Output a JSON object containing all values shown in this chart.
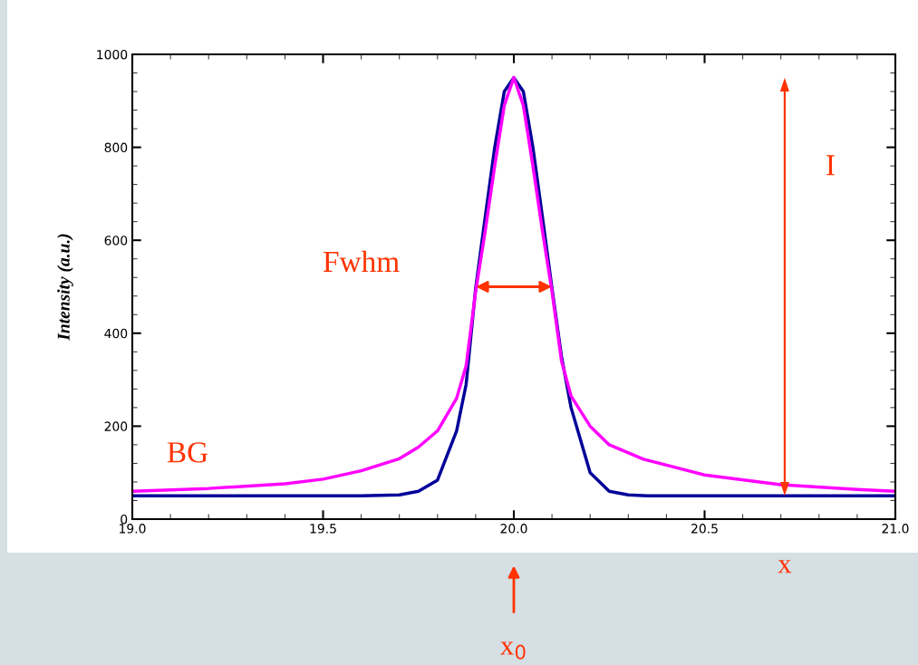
{
  "chart_data": {
    "type": "line",
    "ylabel": "Intensity (a.u.)",
    "series": [
      {
        "color": "#000099",
        "x": [
          19.0,
          19.2,
          19.4,
          19.6,
          19.7,
          19.75,
          19.8,
          19.85,
          19.875,
          19.9,
          19.925,
          19.95,
          19.975,
          20.0,
          20.025,
          20.05,
          20.075,
          20.1,
          20.125,
          20.15,
          20.2,
          20.25,
          20.3,
          20.35,
          20.5,
          20.7,
          21.0
        ],
        "values": [
          50,
          50,
          50,
          50,
          52,
          60,
          84,
          190,
          290,
          497,
          650,
          800,
          920,
          950,
          920,
          800,
          650,
          497,
          350,
          240,
          100,
          60,
          52,
          50,
          50,
          50,
          50
        ]
      },
      {
        "color": "#ff00ff",
        "x": [
          19.0,
          19.2,
          19.4,
          19.5,
          19.6,
          19.7,
          19.75,
          19.8,
          19.85,
          19.875,
          19.9,
          19.925,
          19.95,
          19.975,
          20.0,
          20.025,
          20.05,
          20.075,
          20.1,
          20.125,
          20.15,
          20.2,
          20.25,
          20.34,
          20.5,
          20.7,
          20.9,
          21.0
        ],
        "values": [
          60,
          66,
          76,
          86,
          104,
          130,
          155,
          190,
          260,
          330,
          490,
          620,
          760,
          890,
          950,
          890,
          760,
          620,
          490,
          340,
          265,
          200,
          160,
          129,
          95,
          74,
          64,
          60
        ]
      }
    ],
    "xlim": [
      19.0,
      21.0
    ],
    "xticks": [
      {
        "value": 19.0,
        "label": "19.0"
      },
      {
        "value": 19.5,
        "label": "19.5"
      },
      {
        "value": 20.0,
        "label": "20.0"
      },
      {
        "value": 20.5,
        "label": "20.5"
      },
      {
        "value": 21.0,
        "label": "21.0"
      }
    ],
    "ylim": [
      0,
      1000
    ],
    "yticks": [
      0,
      200,
      400,
      600,
      800,
      1000
    ],
    "grid": false,
    "marker": "none",
    "line_style": "solid",
    "annotations": [
      "I",
      "Fwhm",
      "BG",
      "x",
      "x$_{0}$"
    ]
  }
}
